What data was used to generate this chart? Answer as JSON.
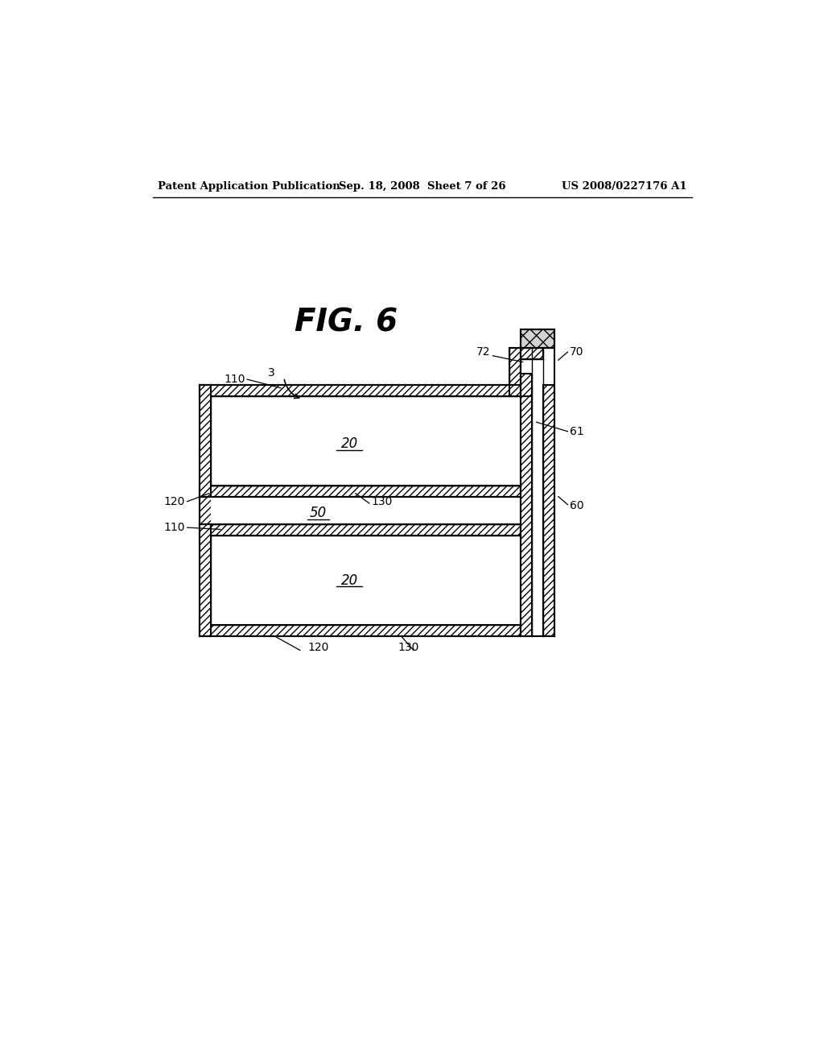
{
  "bg_color": "#ffffff",
  "header_left": "Patent Application Publication",
  "header_center": "Sep. 18, 2008  Sheet 7 of 26",
  "header_right": "US 2008/0227176 A1",
  "fig_title": "FIG. 6"
}
